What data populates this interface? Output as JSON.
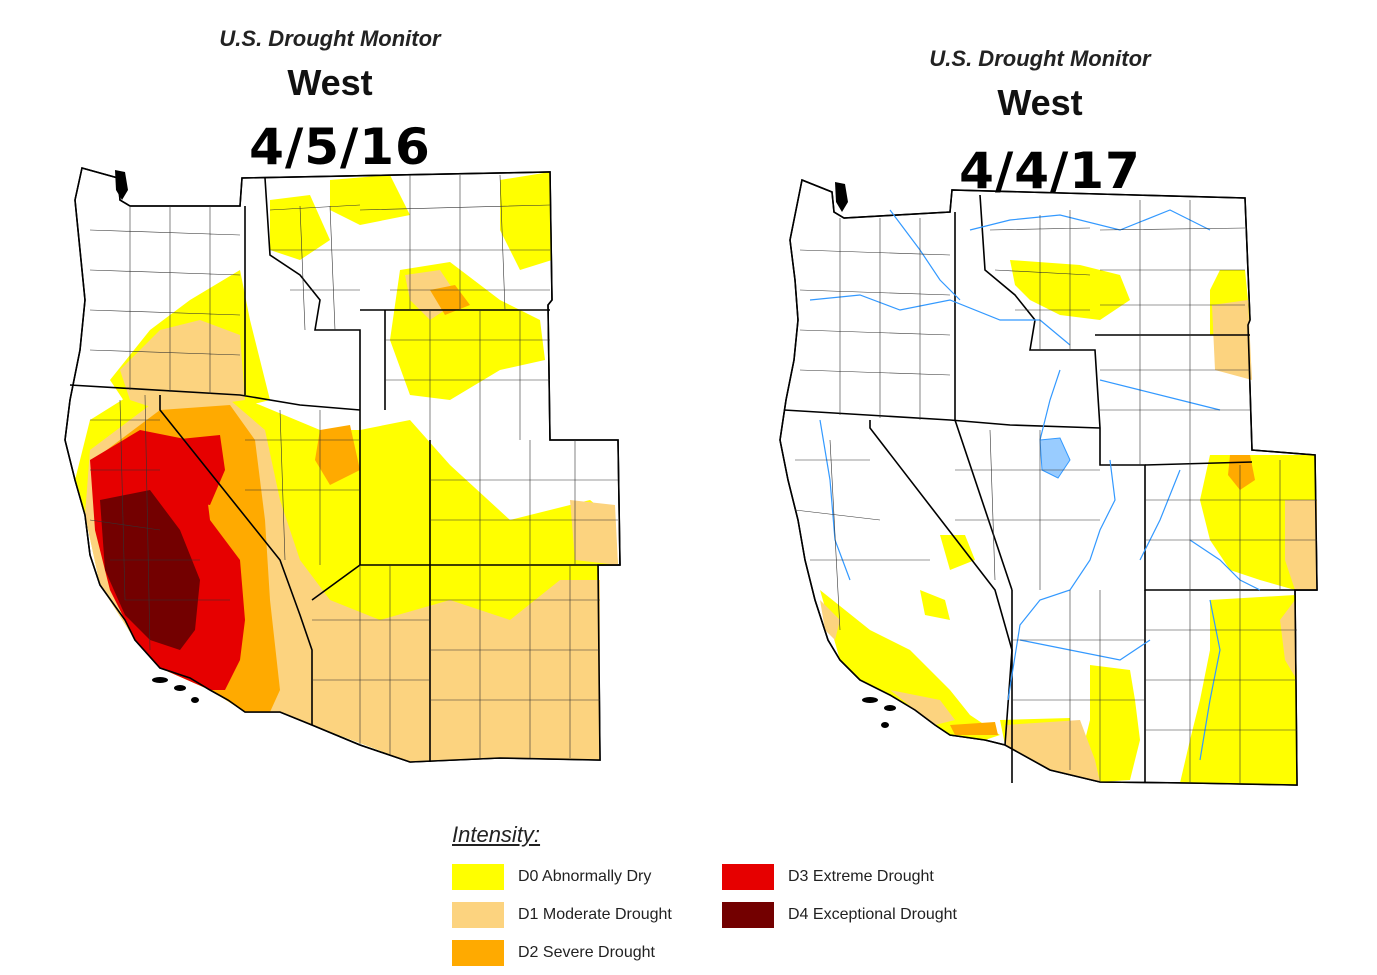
{
  "maps": [
    {
      "monitor_title": "U.S. Drought Monitor",
      "region": "West",
      "date": "4/5/16"
    },
    {
      "monitor_title": "U.S. Drought Monitor",
      "region": "West",
      "date": "4/4/17"
    }
  ],
  "legend": {
    "heading": "Intensity:",
    "items": [
      {
        "code": "D0",
        "label": "D0 Abnormally Dry",
        "color": "#ffff00"
      },
      {
        "code": "D1",
        "label": "D1 Moderate Drought",
        "color": "#fcd37f"
      },
      {
        "code": "D2",
        "label": "D2 Severe Drought",
        "color": "#ffaa00"
      },
      {
        "code": "D3",
        "label": "D3 Extreme Drought",
        "color": "#e60000"
      },
      {
        "code": "D4",
        "label": "D4 Exceptional Drought",
        "color": "#730000"
      }
    ]
  },
  "colors": {
    "state_border": "#000000",
    "county_line": "#333333",
    "river": "#3399ff",
    "lake": "#99ccff"
  }
}
